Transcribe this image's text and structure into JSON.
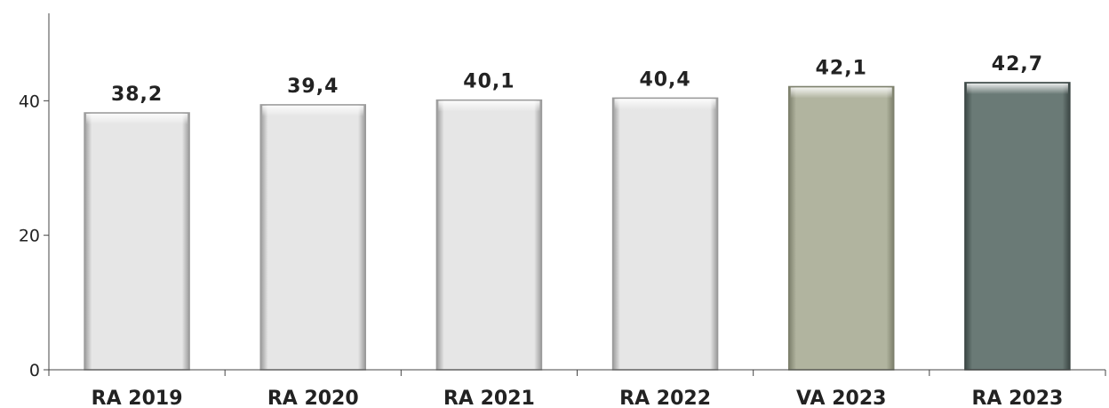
{
  "chart_data": {
    "type": "bar",
    "title": "",
    "xlabel": "",
    "ylabel": "",
    "categories": [
      "RA 2019",
      "RA 2020",
      "RA 2021",
      "RA 2022",
      "VA 2023",
      "RA 2023"
    ],
    "values": [
      38.2,
      39.4,
      40.1,
      40.4,
      42.1,
      42.7
    ],
    "data_labels": [
      "38,2",
      "39,4",
      "40,1",
      "40,4",
      "42,1",
      "42,7"
    ],
    "yticks": [
      0,
      20,
      40
    ],
    "ytick_labels": [
      "0",
      "20",
      "40"
    ],
    "ylim": [
      0,
      53
    ],
    "grid": false,
    "legend": "none",
    "bar_colors": [
      "#e6e6e6",
      "#e6e6e6",
      "#e6e6e6",
      "#e6e6e6",
      "#b1b49f",
      "#6a7a76"
    ],
    "bar_edge_colors": [
      "#9a9a9a",
      "#9a9a9a",
      "#9a9a9a",
      "#9a9a9a",
      "#7d806c",
      "#3c4745"
    ]
  }
}
